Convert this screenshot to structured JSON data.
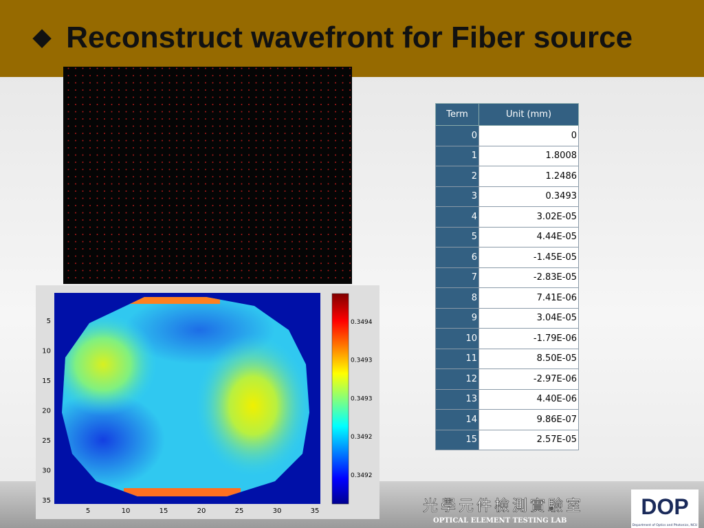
{
  "header": {
    "title": "Reconstruct wavefront for Fiber source"
  },
  "heatmap": {
    "xticks": [
      5,
      10,
      15,
      20,
      25,
      30,
      35
    ],
    "yticks": [
      5,
      10,
      15,
      20,
      25,
      30,
      35
    ],
    "colorbar_labels": [
      "0.3494",
      "0.3493",
      "0.3493",
      "0.3492",
      "0.3492"
    ]
  },
  "table": {
    "columns": [
      "Term",
      "Unit (mm)"
    ],
    "rows": [
      [
        "0",
        "0"
      ],
      [
        "1",
        "1.8008"
      ],
      [
        "2",
        "1.2486"
      ],
      [
        "3",
        "0.3493"
      ],
      [
        "4",
        "3.02E-05"
      ],
      [
        "5",
        "4.44E-05"
      ],
      [
        "6",
        "-1.45E-05"
      ],
      [
        "7",
        "-2.83E-05"
      ],
      [
        "8",
        "7.41E-06"
      ],
      [
        "9",
        "3.04E-05"
      ],
      [
        "10",
        "-1.79E-06"
      ],
      [
        "11",
        "8.50E-05"
      ],
      [
        "12",
        "-2.97E-06"
      ],
      [
        "13",
        "4.40E-06"
      ],
      [
        "14",
        "9.86E-07"
      ],
      [
        "15",
        "2.57E-05"
      ]
    ]
  },
  "footer": {
    "lab_name_zh": "光學元件檢測實驗室",
    "lab_name_en": "OPTICAL ELEMENT TESTING LAB",
    "logo": "DOP",
    "department": "Department of Optics and Photonics, NCU"
  }
}
